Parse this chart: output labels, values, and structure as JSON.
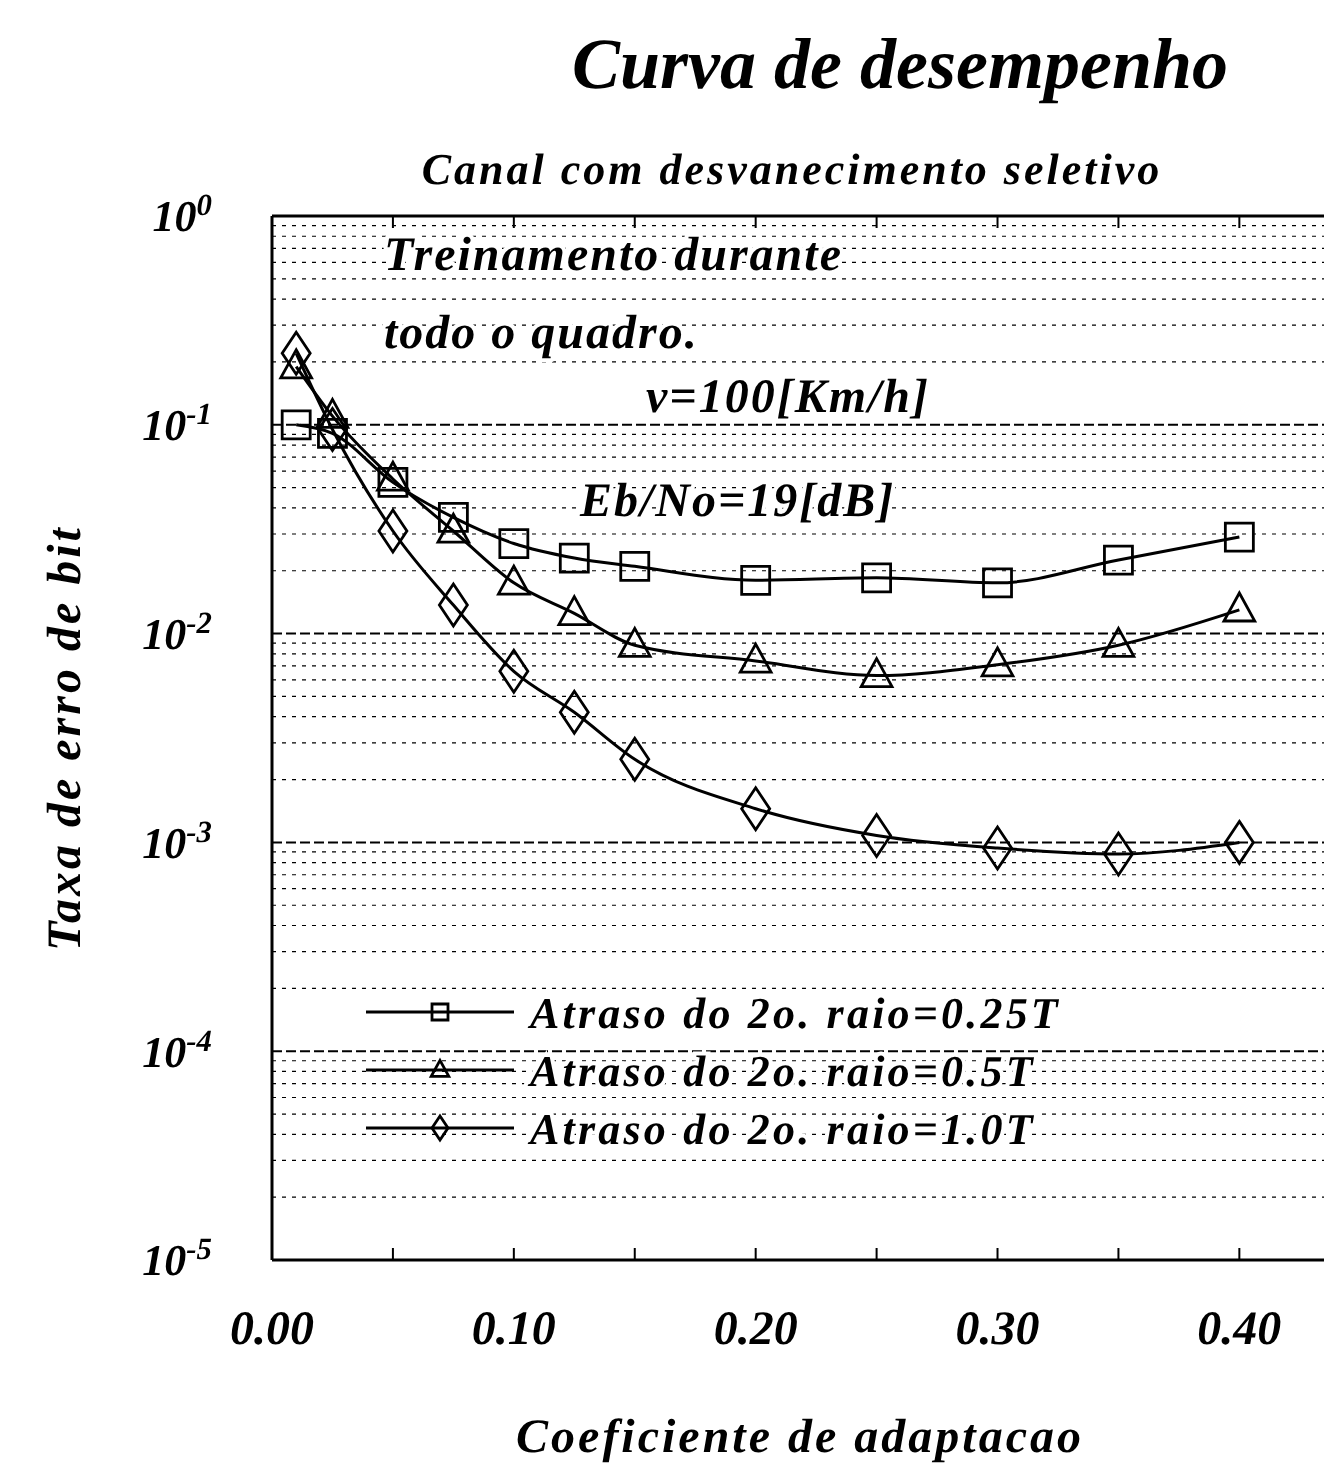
{
  "chart_data": {
    "type": "line",
    "title": "Curva de desempenho",
    "subtitle": "Canal com desvanecimento seletivo",
    "xlabel": "Coeficiente de adaptacao",
    "ylabel": "Taxa de erro de bit",
    "annotations": [
      "Treinamento durante",
      "todo o quadro.",
      "ν=100[Km/h]",
      "Eb/No=19[dB]"
    ],
    "x": [
      0.01,
      0.025,
      0.05,
      0.075,
      0.1,
      0.125,
      0.15,
      0.2,
      0.25,
      0.3,
      0.35,
      0.4
    ],
    "series": [
      {
        "name": "Atraso do 2o. raio=0.25T",
        "color": "#000000",
        "marker": "square",
        "values": [
          0.1,
          0.091,
          0.053,
          0.036,
          0.027,
          0.023,
          0.021,
          0.018,
          0.0185,
          0.0175,
          0.0225,
          0.029
        ]
      },
      {
        "name": "Atraso do 2o. raio=0.5T",
        "color": "#000000",
        "marker": "triangle",
        "values": [
          0.19,
          0.11,
          0.055,
          0.031,
          0.0175,
          0.0125,
          0.0088,
          0.0074,
          0.0063,
          0.0071,
          0.0088,
          0.013
        ]
      },
      {
        "name": "Atraso do 2o. raio=1.0T",
        "color": "#000000",
        "marker": "diamond",
        "values": [
          0.22,
          0.095,
          0.031,
          0.0137,
          0.0066,
          0.0042,
          0.0025,
          0.00145,
          0.00108,
          0.00094,
          0.00088,
          0.001
        ]
      }
    ],
    "log": "y",
    "xlim": [
      0,
      0.435
    ],
    "ylim": [
      1e-05,
      1
    ],
    "xticks": [
      {
        "value": 0,
        "label": "0.00"
      },
      {
        "value": 0.05,
        "label": null
      },
      {
        "value": 0.1,
        "label": "0.10"
      },
      {
        "value": 0.15,
        "label": null
      },
      {
        "value": 0.2,
        "label": "0.20"
      },
      {
        "value": 0.25,
        "label": null
      },
      {
        "value": 0.3,
        "label": "0.30"
      },
      {
        "value": 0.35,
        "label": null
      },
      {
        "value": 0.4,
        "label": "0.40"
      }
    ],
    "yticks": [
      {
        "value": 1e-05,
        "label": "10$^{-5}$"
      },
      {
        "value": 2e-05,
        "label": null
      },
      {
        "value": 3e-05,
        "label": null
      },
      {
        "value": 4e-05,
        "label": null
      },
      {
        "value": 5e-05,
        "label": null
      },
      {
        "value": 6e-05,
        "label": null
      },
      {
        "value": 7e-05,
        "label": null
      },
      {
        "value": 8e-05,
        "label": null
      },
      {
        "value": 9e-05,
        "label": null
      },
      {
        "value": 0.0001,
        "label": "10$^{-4}$"
      },
      {
        "value": 0.0002,
        "label": null
      },
      {
        "value": 0.0003,
        "label": null
      },
      {
        "value": 0.0004,
        "label": null
      },
      {
        "value": 0.0005,
        "label": null
      },
      {
        "value": 0.0006,
        "label": null
      },
      {
        "value": 0.0007,
        "label": null
      },
      {
        "value": 0.0008,
        "label": null
      },
      {
        "value": 0.0009,
        "label": null
      },
      {
        "value": 0.001,
        "label": "10$^{-3}$"
      },
      {
        "value": 0.002,
        "label": null
      },
      {
        "value": 0.003,
        "label": null
      },
      {
        "value": 0.004,
        "label": null
      },
      {
        "value": 0.005,
        "label": null
      },
      {
        "value": 0.006,
        "label": null
      },
      {
        "value": 0.007,
        "label": null
      },
      {
        "value": 0.008,
        "label": null
      },
      {
        "value": 0.009,
        "label": null
      },
      {
        "value": 0.01,
        "label": "10$^{-2}$"
      },
      {
        "value": 0.02,
        "label": null
      },
      {
        "value": 0.03,
        "label": null
      },
      {
        "value": 0.04,
        "label": null
      },
      {
        "value": 0.05,
        "label": null
      },
      {
        "value": 0.06,
        "label": null
      },
      {
        "value": 0.07,
        "label": null
      },
      {
        "value": 0.08,
        "label": null
      },
      {
        "value": 0.09,
        "label": null
      },
      {
        "value": 0.1,
        "label": "10$^{-1}$"
      },
      {
        "value": 0.2,
        "label": null
      },
      {
        "value": 0.3,
        "label": null
      },
      {
        "value": 0.4,
        "label": null
      },
      {
        "value": 0.5,
        "label": null
      },
      {
        "value": 0.6,
        "label": null
      },
      {
        "value": 0.7,
        "label": null
      },
      {
        "value": 0.8,
        "label": null
      },
      {
        "value": 0.9,
        "label": null
      },
      {
        "value": 1,
        "label": "10$^{0}$"
      }
    ],
    "grid": "y",
    "legend": "bottom left",
    "line_style": "solid"
  }
}
